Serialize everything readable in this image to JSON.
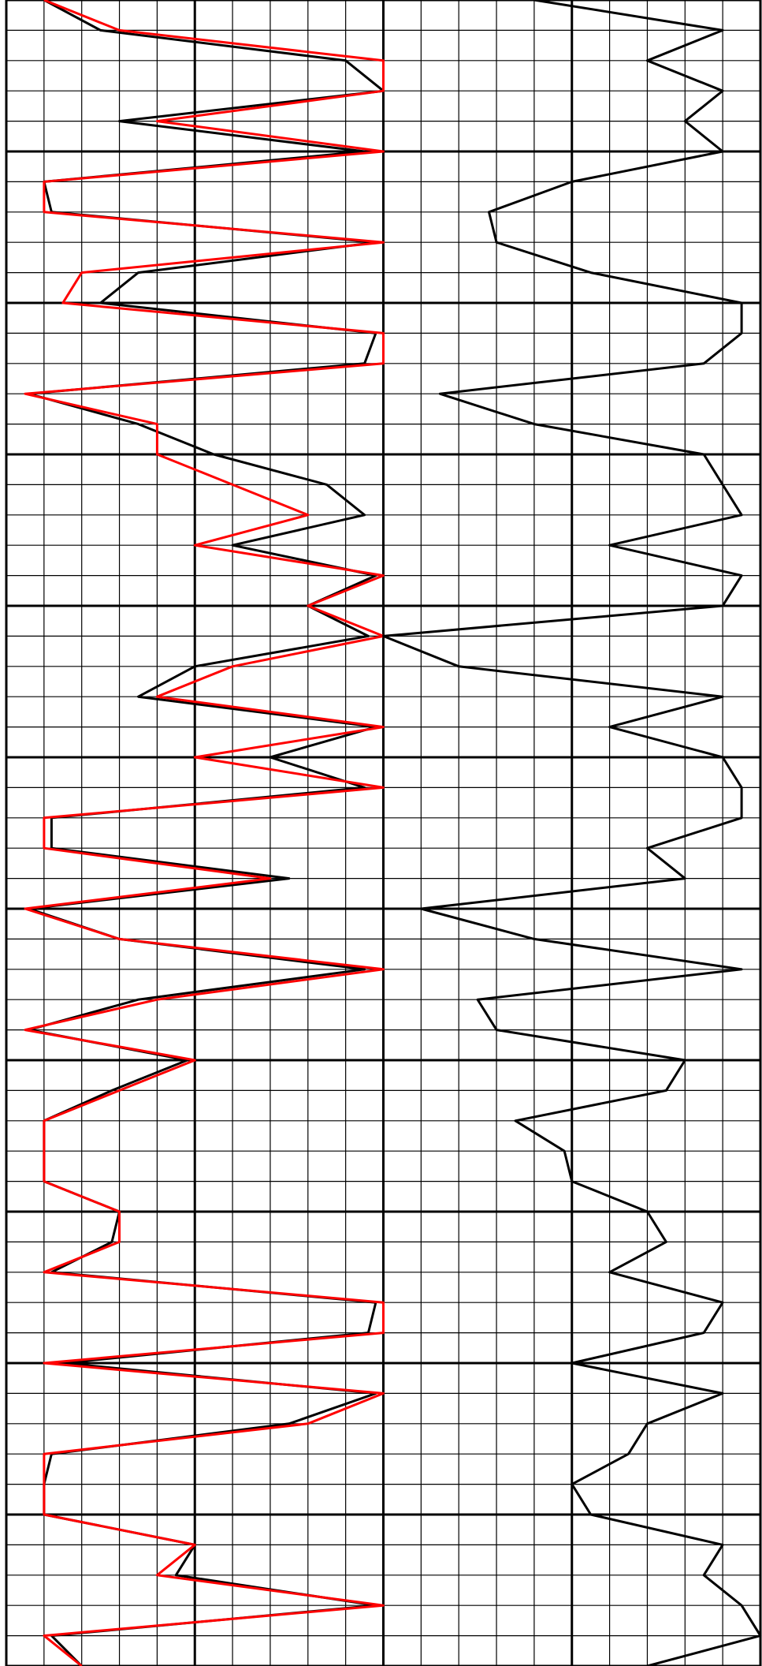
{
  "chart_data": {
    "type": "line",
    "xlim": [
      0,
      20
    ],
    "xticks": [
      0,
      1,
      2,
      3,
      4,
      5,
      6,
      7,
      8,
      9,
      10,
      11,
      12,
      13,
      14,
      15,
      16,
      17,
      18,
      19,
      20
    ],
    "ylim": [
      0,
      55
    ],
    "yticks": [
      0,
      1,
      2,
      3,
      4,
      5,
      6,
      7,
      8,
      9,
      10,
      11,
      12,
      13,
      14,
      15,
      16,
      17,
      18,
      19,
      20,
      21,
      22,
      23,
      24,
      25,
      26,
      27,
      28,
      29,
      30,
      31,
      32,
      33,
      34,
      35,
      36,
      37,
      38,
      39,
      40,
      41,
      42,
      43,
      44,
      45,
      46,
      47,
      48,
      49,
      50,
      51,
      52,
      53,
      54,
      55
    ],
    "grid": true,
    "series": [
      {
        "color": "#000000",
        "values": [
          1,
          2.5,
          9,
          10,
          3,
          9.5,
          1,
          1.2,
          9.8,
          3.5,
          2.5,
          9.8,
          9.5,
          0.6,
          3.5,
          5.5,
          8.5,
          9.5,
          6,
          9.8,
          8,
          9.6,
          5,
          3.5,
          9.8,
          7,
          9.5,
          1.2,
          1.2,
          7.5,
          0.6,
          3,
          9.5,
          3.5,
          0.6,
          4.8,
          2.8,
          1,
          1,
          1,
          3,
          2.8,
          1.2,
          9.8,
          9.6,
          1.5,
          9.8,
          7.5,
          1.2,
          1,
          1,
          5,
          4.5,
          9.8,
          1.2,
          2
        ]
      },
      {
        "color": "#ff0000",
        "values": [
          1,
          3,
          10,
          10,
          4,
          10,
          1,
          1,
          10,
          2,
          1.5,
          10,
          10,
          0.5,
          4,
          4,
          6,
          8,
          5,
          10,
          8,
          10,
          6,
          4,
          10,
          5,
          10,
          1,
          1,
          7,
          0.5,
          3,
          10,
          4,
          0.5,
          5,
          3,
          1,
          1,
          1,
          3,
          3,
          1,
          10,
          10,
          1,
          10,
          8,
          1,
          1,
          1,
          5,
          4,
          10,
          1,
          2
        ]
      },
      {
        "color": "#000000",
        "values": [
          14,
          19,
          17,
          19,
          18,
          19,
          15,
          12.8,
          13,
          15.5,
          19.5,
          19.5,
          18.5,
          11.5,
          14,
          18.5,
          19,
          19.5,
          16,
          19.5,
          19,
          10,
          12,
          19,
          16,
          19,
          19.5,
          19.5,
          17,
          18,
          11,
          14,
          19.5,
          12.5,
          13,
          18,
          17.5,
          13.5,
          14.8,
          15,
          17,
          17.5,
          16,
          19,
          18.5,
          15,
          19,
          17,
          16.5,
          15,
          15.5,
          19,
          18.5,
          19.5,
          20,
          17
        ]
      }
    ]
  }
}
